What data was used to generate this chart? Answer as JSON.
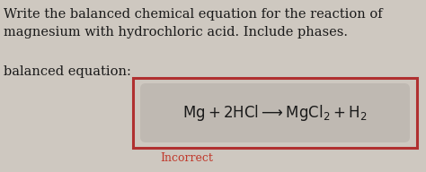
{
  "bg_color": "#cec8c0",
  "text_line1": "Write the balanced chemical equation for the reaction of",
  "text_line2": "magnesium with hydrochloric acid. Include phases.",
  "label_text": "balanced equation:",
  "equation": "$\\mathrm{Mg + 2HCl \\longrightarrow MgCl_2 + H_2}$",
  "incorrect_text": "Incorrect",
  "incorrect_color": "#c0392b",
  "box_outer_color": "#b03030",
  "box_inner_color": "#bfb9b2",
  "text_color": "#1a1a1a",
  "font_size_main": 10.5,
  "font_size_label": 10.5,
  "font_size_eq": 12.0,
  "font_size_incorrect": 9.0
}
